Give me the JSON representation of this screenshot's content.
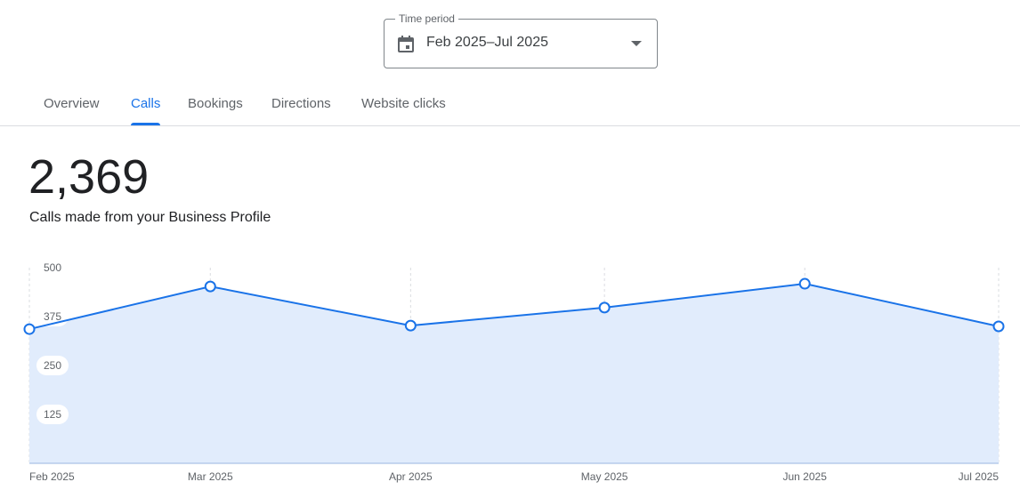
{
  "time_period": {
    "label": "Time period",
    "value": "Feb 2025–Jul 2025"
  },
  "tabs": [
    "Overview",
    "Calls",
    "Bookings",
    "Directions",
    "Website clicks"
  ],
  "active_tab": 1,
  "summary": {
    "total": "2,369",
    "description": "Calls made from your Business Profile"
  },
  "chart_data": {
    "type": "area",
    "x": [
      "Feb 2025",
      "Mar 2025",
      "Apr 2025",
      "May 2025",
      "Jun 2025",
      "Jul 2025"
    ],
    "series": [
      {
        "color": "#1a73e8",
        "values": [
          343,
          452,
          352,
          398,
          459,
          350
        ]
      }
    ],
    "ylim": [
      0,
      500
    ],
    "yticks": [
      125,
      250,
      375,
      500
    ],
    "grid": true
  }
}
